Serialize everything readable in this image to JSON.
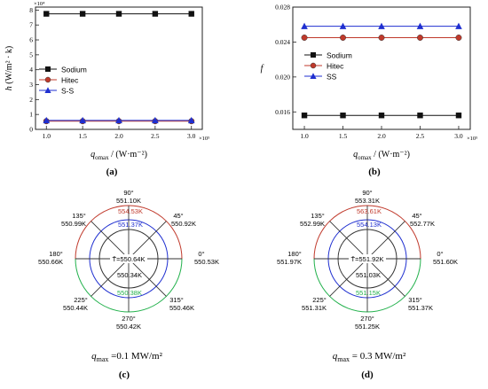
{
  "colors": {
    "black": "#111111",
    "red": "#c0392b",
    "blue": "#1f2fd0",
    "green": "#22b14c",
    "grey": "#333333"
  },
  "chart_data": [
    {
      "id": "a",
      "type": "line",
      "panel_label": "(a)",
      "ylabel_main": "h",
      "ylabel_unit": " (W/m² · k)",
      "y_exp": "×10⁴",
      "x_exp": "×10⁵",
      "xlabel_main": "q",
      "xlabel_sub": "omax",
      "xlabel_unit": " / (W·m⁻²)",
      "x": [
        1.0,
        1.5,
        2.0,
        2.5,
        3.0
      ],
      "xticks": [
        "1.0",
        "1.5",
        "2.0",
        "2.5",
        "3.0"
      ],
      "xlim": [
        0.85,
        3.15
      ],
      "ylim": [
        0,
        8.2
      ],
      "yticks": [
        0,
        1,
        2,
        3,
        4,
        5,
        6,
        7,
        8
      ],
      "legend": "center-left",
      "series": [
        {
          "name": "Sodium",
          "marker": "square",
          "color": "#111111",
          "values": [
            7.75,
            7.75,
            7.75,
            7.75,
            7.75
          ]
        },
        {
          "name": "Hitec",
          "marker": "circle",
          "color": "#c0392b",
          "values": [
            0.55,
            0.55,
            0.55,
            0.55,
            0.55
          ]
        },
        {
          "name": "S-S",
          "marker": "triangle",
          "color": "#1f2fd0",
          "values": [
            0.6,
            0.6,
            0.6,
            0.6,
            0.6
          ]
        }
      ]
    },
    {
      "id": "b",
      "type": "line",
      "panel_label": "(b)",
      "ylabel_main": "f",
      "x_exp": "×10⁵",
      "xlabel_main": "q",
      "xlabel_sub": "omax",
      "xlabel_unit": " / (W·m⁻²)",
      "x": [
        1.0,
        1.5,
        2.0,
        2.5,
        3.0
      ],
      "xticks": [
        "1.0",
        "1.5",
        "2.0",
        "2.5",
        "3.0"
      ],
      "xlim": [
        0.85,
        3.15
      ],
      "ylim": [
        0.014,
        0.028
      ],
      "yticks": [
        "0.016",
        "0.020",
        "0.024",
        "0.028"
      ],
      "ytick_values": [
        0.016,
        0.02,
        0.024,
        0.028
      ],
      "legend": "center-right",
      "series": [
        {
          "name": "Sodium",
          "marker": "square",
          "color": "#111111",
          "values": [
            0.0156,
            0.0156,
            0.0156,
            0.0156,
            0.0156
          ]
        },
        {
          "name": "Hitec",
          "marker": "circle",
          "color": "#c0392b",
          "values": [
            0.0245,
            0.0245,
            0.0245,
            0.0245,
            0.0245
          ]
        },
        {
          "name": "SS",
          "marker": "triangle",
          "color": "#1f2fd0",
          "values": [
            0.0258,
            0.0258,
            0.0258,
            0.0258,
            0.0258
          ]
        }
      ]
    },
    {
      "id": "c",
      "type": "polar",
      "panel_label": "(c)",
      "caption_q": "q",
      "caption_sub": "max",
      "caption_val": " =0.1 MW/m²",
      "mean_label": "T̄=550.64K",
      "angles": [
        {
          "deg": "90°",
          "temp": "551.10K"
        },
        {
          "deg": "45°",
          "temp": "550.92K"
        },
        {
          "deg": "0°",
          "temp": "550.53K"
        },
        {
          "deg": "315°",
          "temp": "550.46K"
        },
        {
          "deg": "270°",
          "temp": "550.42K"
        },
        {
          "deg": "225°",
          "temp": "550.44K"
        },
        {
          "deg": "180°",
          "temp": "550.66K"
        },
        {
          "deg": "135°",
          "temp": "550.99K"
        }
      ],
      "inner": {
        "red": "554.53K",
        "blue": "551.37K",
        "black": "550.34K",
        "green": "550.38K"
      }
    },
    {
      "id": "d",
      "type": "polar",
      "panel_label": "(d)",
      "caption_q": "q",
      "caption_sub": "max",
      "caption_val": " = 0.3 MW/m²",
      "mean_label": "T̄=551.92K",
      "angles": [
        {
          "deg": "90°",
          "temp": "553.31K"
        },
        {
          "deg": "45°",
          "temp": "552.77K"
        },
        {
          "deg": "0°",
          "temp": "551.60K"
        },
        {
          "deg": "315°",
          "temp": "551.37K"
        },
        {
          "deg": "270°",
          "temp": "551.25K"
        },
        {
          "deg": "225°",
          "temp": "551.31K"
        },
        {
          "deg": "180°",
          "temp": "551.97K"
        },
        {
          "deg": "135°",
          "temp": "552.99K"
        }
      ],
      "inner": {
        "red": "563.61K",
        "blue": "554.13K",
        "black": "551.03K",
        "green": "551.15K"
      }
    }
  ]
}
